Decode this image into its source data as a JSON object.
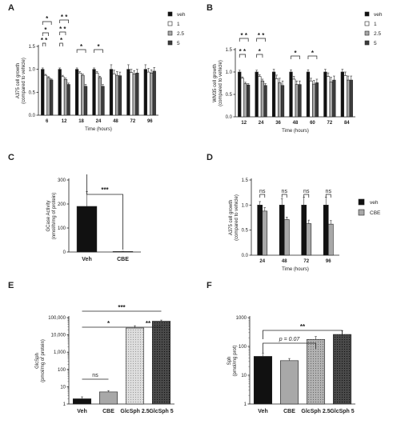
{
  "chart_data": [
    {
      "panel": "A",
      "type": "bar",
      "xlabel": "Time (hours)",
      "ylabel": "A375 cell growth (compared to vehicle)",
      "ylim": [
        0.0,
        1.5
      ],
      "yticks": [
        "0.0",
        "0.5",
        "1.0",
        "1.5"
      ],
      "categories": [
        "6",
        "12",
        "18",
        "24",
        "48",
        "72",
        "96"
      ],
      "legend_position": "top-right",
      "series": [
        {
          "name": "veh",
          "values": [
            1.0,
            1.0,
            1.0,
            1.0,
            1.0,
            1.0,
            1.0
          ],
          "errors": [
            0.03,
            0.03,
            0.03,
            0.03,
            0.1,
            0.1,
            0.1
          ]
        },
        {
          "name": "1",
          "values": [
            0.87,
            0.84,
            0.92,
            0.92,
            0.9,
            0.93,
            0.94
          ],
          "errors": [
            0.02,
            0.03,
            0.03,
            0.03,
            0.08,
            0.07,
            0.08
          ]
        },
        {
          "name": "2.5",
          "values": [
            0.82,
            0.78,
            0.87,
            0.82,
            0.87,
            0.9,
            0.92
          ],
          "errors": [
            0.02,
            0.03,
            0.03,
            0.03,
            0.08,
            0.07,
            0.07
          ]
        },
        {
          "name": "5",
          "values": [
            0.77,
            0.67,
            0.63,
            0.63,
            0.86,
            0.92,
            0.96
          ],
          "errors": [
            0.02,
            0.03,
            0.04,
            0.04,
            0.08,
            0.08,
            0.08
          ]
        }
      ],
      "significance": [
        {
          "label": "*",
          "from": "6",
          "to": "6"
        },
        {
          "label": "*",
          "from": "6",
          "to": "6"
        },
        {
          "label": "* *",
          "from": "6",
          "to": "6"
        },
        {
          "label": "* *",
          "from": "12",
          "to": "12"
        },
        {
          "label": "* *",
          "from": "12",
          "to": "12"
        },
        {
          "label": "*",
          "from": "12",
          "to": "12"
        },
        {
          "label": "*",
          "from": "18",
          "to": "18"
        },
        {
          "label": "*",
          "from": "24",
          "to": "24"
        }
      ]
    },
    {
      "panel": "B",
      "type": "bar",
      "xlabel": "Time (hours)",
      "ylabel": "WM35 cell growth (compared to vehicle)",
      "ylim": [
        0.0,
        1.5
      ],
      "yticks": [
        "0.0",
        "0.5",
        "1.0",
        "1.5"
      ],
      "categories": [
        "12",
        "24",
        "36",
        "48",
        "60",
        "72",
        "84"
      ],
      "legend_position": "top-right",
      "series": [
        {
          "name": "veh",
          "values": [
            1.0,
            1.0,
            1.0,
            1.0,
            1.0,
            1.0,
            1.0
          ],
          "errors": [
            0.04,
            0.04,
            0.06,
            0.05,
            0.05,
            0.06,
            0.06
          ]
        },
        {
          "name": "1",
          "values": [
            0.86,
            0.9,
            0.85,
            0.84,
            0.8,
            0.9,
            0.92
          ],
          "errors": [
            0.03,
            0.04,
            0.08,
            0.06,
            0.06,
            0.08,
            0.08
          ]
        },
        {
          "name": "2.5",
          "values": [
            0.74,
            0.8,
            0.76,
            0.72,
            0.73,
            0.78,
            0.82
          ],
          "errors": [
            0.03,
            0.04,
            0.1,
            0.08,
            0.08,
            0.1,
            0.09
          ]
        },
        {
          "name": "5",
          "values": [
            0.71,
            0.7,
            0.7,
            0.72,
            0.76,
            0.82,
            0.82
          ],
          "errors": [
            0.03,
            0.04,
            0.1,
            0.08,
            0.08,
            0.09,
            0.09
          ]
        }
      ],
      "significance": [
        {
          "label": "* *",
          "from": "12",
          "to": "12"
        },
        {
          "label": "* *",
          "from": "12",
          "to": "12"
        },
        {
          "label": "* *",
          "from": "24",
          "to": "24"
        },
        {
          "label": "*",
          "from": "24",
          "to": "24"
        },
        {
          "label": "*",
          "from": "48",
          "to": "48"
        },
        {
          "label": "*",
          "from": "60",
          "to": "60"
        }
      ]
    },
    {
      "panel": "C",
      "type": "bar",
      "xlabel": "",
      "ylabel": "GCase Activity (nmol/h/mg of protein)",
      "ylim": [
        0,
        300
      ],
      "yticks": [
        "0",
        "100",
        "200",
        "300"
      ],
      "categories": [
        "Veh",
        "CBE"
      ],
      "values": [
        190,
        2
      ],
      "errors": [
        62,
        1
      ],
      "significance": [
        {
          "label": "***",
          "from": "Veh",
          "to": "CBE"
        }
      ]
    },
    {
      "panel": "D",
      "type": "bar",
      "xlabel": "Time (hours)",
      "ylabel": "A375 cell growth (compared to vehicle)",
      "ylim": [
        0.0,
        1.5
      ],
      "yticks": [
        "0.0",
        "0.5",
        "1.0",
        "1.5"
      ],
      "categories": [
        "24",
        "48",
        "72",
        "96"
      ],
      "legend_position": "right",
      "series": [
        {
          "name": "veh",
          "values": [
            1.0,
            1.0,
            1.0,
            1.0
          ],
          "errors": [
            0.07,
            0.13,
            0.16,
            0.16
          ]
        },
        {
          "name": "CBE",
          "values": [
            0.88,
            0.71,
            0.63,
            0.62
          ],
          "errors": [
            0.07,
            0.05,
            0.07,
            0.07
          ]
        }
      ],
      "significance": [
        {
          "label": "ns",
          "from": "24",
          "to": "24"
        },
        {
          "label": "ns",
          "from": "48",
          "to": "48"
        },
        {
          "label": "ns",
          "from": "72",
          "to": "72"
        },
        {
          "label": "ns",
          "from": "96",
          "to": "96"
        }
      ]
    },
    {
      "panel": "E",
      "type": "bar",
      "xlabel": "",
      "ylabel": "GlcSph (pmol/mg of protein)",
      "yscale": "log",
      "ylim": [
        1,
        100000
      ],
      "yticks": [
        "1",
        "10",
        "100",
        "1,000",
        "10,000",
        "100,000"
      ],
      "categories": [
        "Veh",
        "CBE",
        "GlcSph 2.5",
        "GlcSph 5"
      ],
      "values": [
        2,
        5,
        25000,
        62000
      ],
      "errors_upper": [
        2.6,
        6,
        34000,
        72000
      ],
      "significance": [
        {
          "label": "ns",
          "from": "Veh",
          "to": "CBE"
        },
        {
          "label": "*",
          "from": "Veh",
          "to": "GlcSph 2.5"
        },
        {
          "label": "**",
          "from": "GlcSph 2.5",
          "to": "GlcSph 5"
        },
        {
          "label": "***",
          "from": "Veh",
          "to": "GlcSph 5"
        }
      ]
    },
    {
      "panel": "F",
      "type": "bar",
      "xlabel": "",
      "ylabel": "Sph (pmol/mg prot)",
      "yscale": "log",
      "ylim": [
        1,
        1000
      ],
      "yticks": [
        "1",
        "10",
        "100",
        "1000"
      ],
      "categories": [
        "Veh",
        "CBE",
        "GlcSph 2.5",
        "GlcSph 5"
      ],
      "values": [
        45,
        32,
        175,
        260
      ],
      "errors_upper": [
        58,
        38,
        220,
        350
      ],
      "significance": [
        {
          "label": "p = 0.07",
          "from": "Veh",
          "to": "GlcSph 2.5"
        },
        {
          "label": "**",
          "from": "Veh",
          "to": "GlcSph 5"
        }
      ]
    }
  ]
}
